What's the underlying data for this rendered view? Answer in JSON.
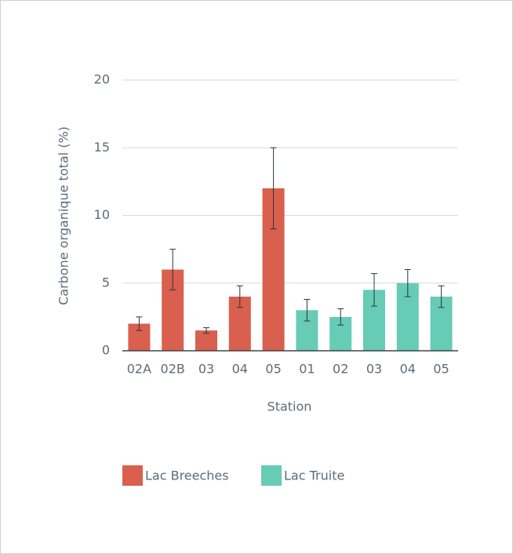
{
  "chart_data": {
    "type": "bar",
    "x_label": "Station",
    "y_label": "Carbone organique total (%)",
    "categories": [
      "02A",
      "02B",
      "03",
      "04",
      "05",
      "01",
      "02",
      "03",
      "04",
      "05"
    ],
    "series": [
      {
        "name": "Lac Breeches",
        "color": "#d95f4e",
        "values": [
          2,
          6,
          1.5,
          4,
          12,
          null,
          null,
          null,
          null,
          null
        ],
        "errors": [
          0.5,
          1.5,
          0.2,
          0.8,
          3,
          null,
          null,
          null,
          null,
          null
        ]
      },
      {
        "name": "Lac Truite",
        "color": "#66ccb5",
        "values": [
          null,
          null,
          null,
          null,
          null,
          3,
          2.5,
          4.5,
          5,
          4
        ],
        "errors": [
          null,
          null,
          null,
          null,
          null,
          0.8,
          0.6,
          1.2,
          1,
          0.8
        ]
      }
    ],
    "ylim": [
      0,
      20
    ],
    "yticks": [
      0,
      5,
      10,
      15,
      20
    ],
    "grid": true,
    "legend": "bottom"
  }
}
